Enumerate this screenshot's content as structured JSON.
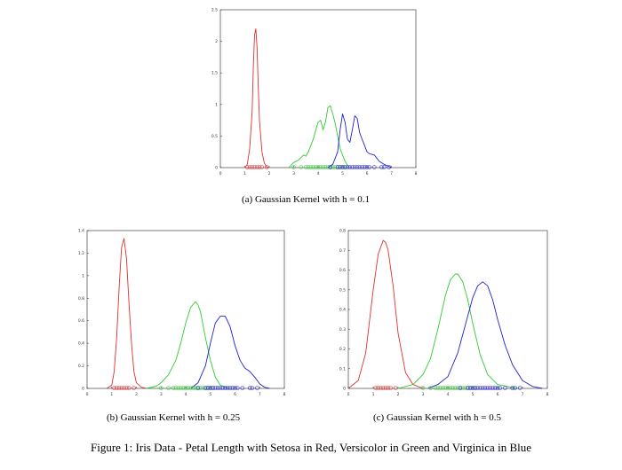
{
  "figure_caption": "Figure 1: Iris Data - Petal Length with Setosa in Red, Versicolor in Green and Virginica in Blue",
  "colors": {
    "setosa": "#e03030",
    "versicolor": "#2ecc2e",
    "virginica": "#2020d0",
    "axis": "#000000"
  },
  "chart_data": [
    {
      "type": "line",
      "caption": "(a) Gaussian Kernel with h = 0.1",
      "xlim": [
        0,
        8
      ],
      "ylim": [
        0,
        2.5
      ],
      "xticks": [
        "0",
        "1",
        "2",
        "3",
        "4",
        "5",
        "6",
        "7",
        "8"
      ],
      "yticks": [
        "0",
        "0.5",
        "1",
        "1.5",
        "2",
        "2.5"
      ],
      "series": [
        {
          "name": "Setosa",
          "color": "#e03030",
          "x": [
            1.0,
            1.1,
            1.2,
            1.3,
            1.35,
            1.4,
            1.45,
            1.5,
            1.55,
            1.6,
            1.7,
            1.8,
            1.9,
            2.0
          ],
          "y": [
            0.0,
            0.05,
            0.3,
            0.9,
            1.6,
            2.1,
            2.2,
            1.9,
            1.3,
            0.75,
            0.25,
            0.07,
            0.01,
            0.0
          ]
        },
        {
          "name": "Versicolor",
          "color": "#2ecc2e",
          "x": [
            2.8,
            3.0,
            3.2,
            3.4,
            3.5,
            3.6,
            3.8,
            4.0,
            4.1,
            4.2,
            4.3,
            4.4,
            4.5,
            4.6,
            4.7,
            4.8,
            4.9,
            5.0,
            5.1,
            5.2,
            5.3
          ],
          "y": [
            0.0,
            0.08,
            0.12,
            0.2,
            0.18,
            0.25,
            0.45,
            0.72,
            0.75,
            0.6,
            0.72,
            0.95,
            0.98,
            0.85,
            0.7,
            0.5,
            0.3,
            0.2,
            0.1,
            0.04,
            0.0
          ]
        },
        {
          "name": "Virginica",
          "color": "#2020d0",
          "x": [
            4.4,
            4.6,
            4.8,
            4.9,
            5.0,
            5.1,
            5.2,
            5.3,
            5.4,
            5.5,
            5.6,
            5.7,
            5.8,
            5.9,
            6.0,
            6.1,
            6.3,
            6.5,
            6.7,
            6.9,
            7.0
          ],
          "y": [
            0.0,
            0.05,
            0.25,
            0.6,
            0.85,
            0.72,
            0.45,
            0.4,
            0.6,
            0.82,
            0.78,
            0.55,
            0.45,
            0.35,
            0.25,
            0.22,
            0.2,
            0.1,
            0.05,
            0.02,
            0.0
          ]
        }
      ],
      "rugs": [
        {
          "color": "#e03030",
          "x": [
            1.1,
            1.2,
            1.3,
            1.4,
            1.5,
            1.6,
            1.7,
            1.9
          ]
        },
        {
          "color": "#2ecc2e",
          "x": [
            3.0,
            3.3,
            3.5,
            3.6,
            3.7,
            3.8,
            3.9,
            4.0,
            4.1,
            4.2,
            4.3,
            4.4,
            4.5,
            4.6,
            4.7,
            4.8,
            4.9,
            5.0,
            5.1
          ]
        },
        {
          "color": "#2020d0",
          "x": [
            4.5,
            4.8,
            4.9,
            5.0,
            5.1,
            5.2,
            5.3,
            5.4,
            5.5,
            5.6,
            5.7,
            5.8,
            5.9,
            6.0,
            6.1,
            6.3,
            6.6,
            6.7,
            6.9
          ]
        }
      ]
    },
    {
      "type": "line",
      "caption": "(b) Gaussian Kernel with h = 0.25",
      "xlim": [
        0,
        8
      ],
      "ylim": [
        0,
        1.4
      ],
      "xticks": [
        "0",
        "1",
        "2",
        "3",
        "4",
        "5",
        "6",
        "7",
        "8"
      ],
      "yticks": [
        "0",
        "0.2",
        "0.4",
        "0.6",
        "0.8",
        "1",
        "1.2",
        "1.4"
      ],
      "series": [
        {
          "name": "Setosa",
          "color": "#e03030",
          "x": [
            0.8,
            1.0,
            1.1,
            1.2,
            1.3,
            1.4,
            1.5,
            1.6,
            1.7,
            1.8,
            1.9,
            2.0,
            2.2,
            2.4
          ],
          "y": [
            0.0,
            0.03,
            0.15,
            0.45,
            0.9,
            1.25,
            1.33,
            1.15,
            0.75,
            0.4,
            0.15,
            0.05,
            0.01,
            0.0
          ]
        },
        {
          "name": "Versicolor",
          "color": "#2ecc2e",
          "x": [
            2.4,
            2.8,
            3.0,
            3.3,
            3.6,
            3.8,
            4.0,
            4.2,
            4.4,
            4.5,
            4.6,
            4.8,
            5.0,
            5.2,
            5.4,
            5.6,
            5.8
          ],
          "y": [
            0.0,
            0.02,
            0.05,
            0.12,
            0.25,
            0.4,
            0.58,
            0.72,
            0.77,
            0.74,
            0.68,
            0.45,
            0.25,
            0.1,
            0.03,
            0.01,
            0.0
          ]
        },
        {
          "name": "Virginica",
          "color": "#2020d0",
          "x": [
            4.2,
            4.5,
            4.8,
            5.0,
            5.2,
            5.4,
            5.6,
            5.8,
            6.0,
            6.2,
            6.4,
            6.6,
            6.8,
            7.0,
            7.2,
            7.4
          ],
          "y": [
            0.0,
            0.05,
            0.2,
            0.4,
            0.58,
            0.64,
            0.64,
            0.55,
            0.38,
            0.25,
            0.18,
            0.15,
            0.1,
            0.04,
            0.01,
            0.0
          ]
        }
      ],
      "rugs": [
        {
          "color": "#e03030",
          "x": [
            1.1,
            1.2,
            1.3,
            1.4,
            1.5,
            1.6,
            1.7,
            1.9
          ]
        },
        {
          "color": "#2ecc2e",
          "x": [
            3.0,
            3.3,
            3.5,
            3.6,
            3.7,
            3.8,
            3.9,
            4.0,
            4.1,
            4.2,
            4.3,
            4.4,
            4.5,
            4.6,
            4.7,
            4.8,
            4.9,
            5.0,
            5.1
          ]
        },
        {
          "color": "#2020d0",
          "x": [
            4.5,
            4.8,
            4.9,
            5.0,
            5.1,
            5.2,
            5.3,
            5.4,
            5.5,
            5.6,
            5.7,
            5.8,
            5.9,
            6.0,
            6.1,
            6.3,
            6.6,
            6.7,
            6.9
          ]
        }
      ]
    },
    {
      "type": "line",
      "caption": "(c) Gaussian Kernel with h = 0.5",
      "xlim": [
        0,
        8
      ],
      "ylim": [
        0,
        0.8
      ],
      "xticks": [
        "0",
        "1",
        "2",
        "3",
        "4",
        "5",
        "6",
        "7",
        "8"
      ],
      "yticks": [
        "0",
        "0.1",
        "0.2",
        "0.3",
        "0.4",
        "0.5",
        "0.6",
        "0.7",
        "0.8"
      ],
      "series": [
        {
          "name": "Setosa",
          "color": "#e03030",
          "x": [
            0.0,
            0.4,
            0.7,
            1.0,
            1.2,
            1.4,
            1.5,
            1.6,
            1.8,
            2.0,
            2.3,
            2.6,
            3.0
          ],
          "y": [
            0.0,
            0.04,
            0.18,
            0.5,
            0.68,
            0.75,
            0.74,
            0.7,
            0.52,
            0.28,
            0.08,
            0.02,
            0.0
          ]
        },
        {
          "name": "Versicolor",
          "color": "#2ecc2e",
          "x": [
            2.0,
            2.6,
            3.0,
            3.3,
            3.6,
            3.9,
            4.1,
            4.3,
            4.4,
            4.6,
            4.8,
            5.0,
            5.3,
            5.6,
            6.0,
            6.4,
            6.8
          ],
          "y": [
            0.0,
            0.02,
            0.07,
            0.15,
            0.3,
            0.47,
            0.55,
            0.58,
            0.58,
            0.54,
            0.45,
            0.33,
            0.17,
            0.07,
            0.02,
            0.01,
            0.0
          ]
        },
        {
          "name": "Virginica",
          "color": "#2020d0",
          "x": [
            3.2,
            3.6,
            4.0,
            4.4,
            4.7,
            5.0,
            5.2,
            5.4,
            5.6,
            5.8,
            6.0,
            6.3,
            6.6,
            7.0,
            7.4,
            7.8
          ],
          "y": [
            0.0,
            0.02,
            0.06,
            0.18,
            0.32,
            0.46,
            0.52,
            0.54,
            0.52,
            0.45,
            0.35,
            0.22,
            0.12,
            0.04,
            0.01,
            0.0
          ]
        }
      ],
      "rugs": [
        {
          "color": "#e03030",
          "x": [
            1.1,
            1.2,
            1.3,
            1.4,
            1.5,
            1.6,
            1.7,
            1.9
          ]
        },
        {
          "color": "#2ecc2e",
          "x": [
            3.0,
            3.3,
            3.5,
            3.6,
            3.7,
            3.8,
            3.9,
            4.0,
            4.1,
            4.2,
            4.3,
            4.4,
            4.5,
            4.6,
            4.7,
            4.8,
            4.9,
            5.0,
            5.1
          ]
        },
        {
          "color": "#2020d0",
          "x": [
            4.5,
            4.8,
            4.9,
            5.0,
            5.1,
            5.2,
            5.3,
            5.4,
            5.5,
            5.6,
            5.7,
            5.8,
            5.9,
            6.0,
            6.1,
            6.3,
            6.6,
            6.7,
            6.9
          ]
        }
      ]
    }
  ]
}
